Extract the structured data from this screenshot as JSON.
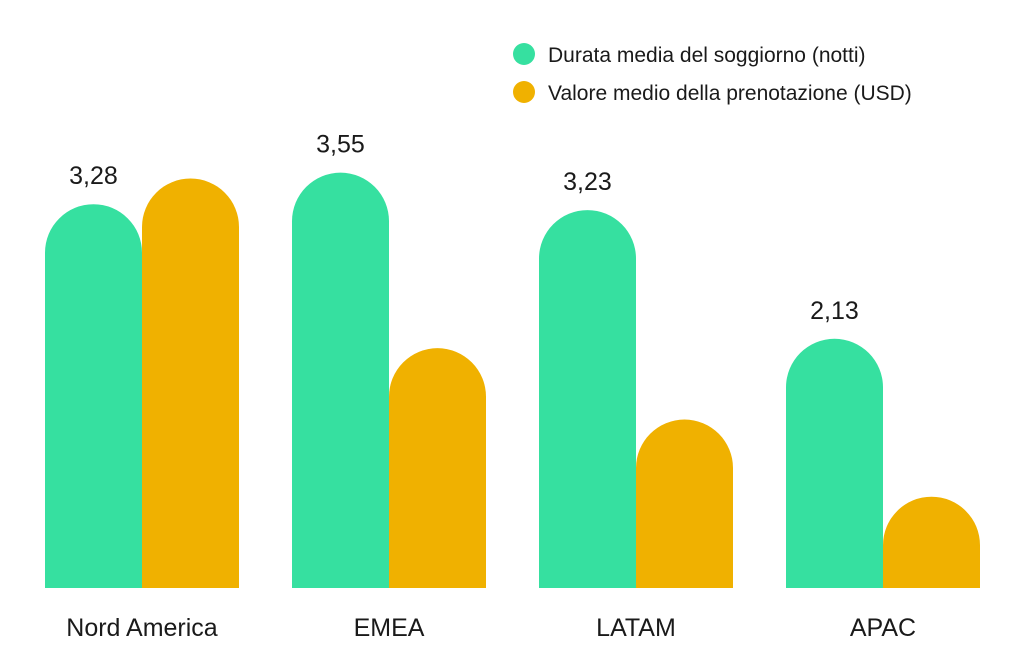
{
  "chart_data": {
    "type": "bar",
    "title": "",
    "xlabel": "",
    "ylabel": "",
    "categories": [
      "Nord America",
      "EMEA",
      "LATAM",
      "APAC"
    ],
    "series": [
      {
        "name": "Durata media del soggiorno (notti)",
        "color": "#36E0A0",
        "values": [
          3.28,
          3.55,
          3.23,
          2.13
        ],
        "value_labels": [
          "3,28",
          "3,55",
          "3,23",
          "2,13"
        ]
      },
      {
        "name": "Valore medio della prenotazione (USD)",
        "color": "#F0B100",
        "values": [
          3.5,
          2.05,
          1.44,
          0.78
        ],
        "value_labels": null
      }
    ],
    "ylim": [
      0,
      4
    ],
    "grid": false,
    "legend_position": "top-right"
  }
}
